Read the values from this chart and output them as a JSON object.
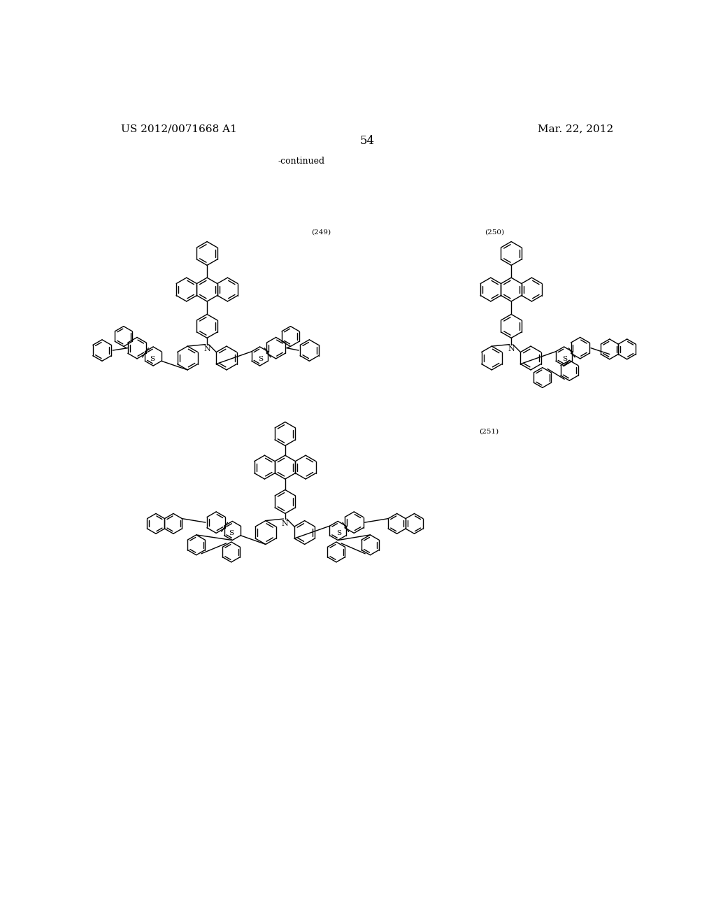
{
  "page_number": "54",
  "patent_number": "US 2012/0071668 A1",
  "date": "Mar. 22, 2012",
  "continued_text": "-continued",
  "compound_numbers": [
    "(249)",
    "(250)",
    "(251)"
  ],
  "background_color": "#ffffff",
  "line_color": "#000000",
  "text_color": "#000000",
  "font_size_header": 11,
  "font_size_label": 8,
  "font_size_page": 12
}
